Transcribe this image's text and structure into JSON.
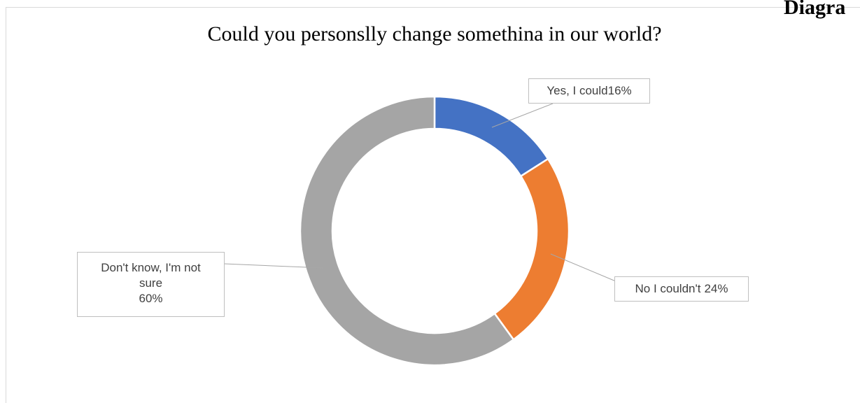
{
  "corner_label": "Diagra",
  "chart_data": {
    "type": "donut",
    "title": "Could you personslly change somethina in our world?",
    "categories": [
      "Yes, I could",
      "No I couldn't",
      "Don't know, I'm not sure"
    ],
    "values": [
      16,
      24,
      60
    ],
    "value_labels": [
      "16%",
      "24%",
      "60%"
    ],
    "colors": [
      "#4472c4",
      "#ed7d31",
      "#a5a5a5"
    ]
  }
}
